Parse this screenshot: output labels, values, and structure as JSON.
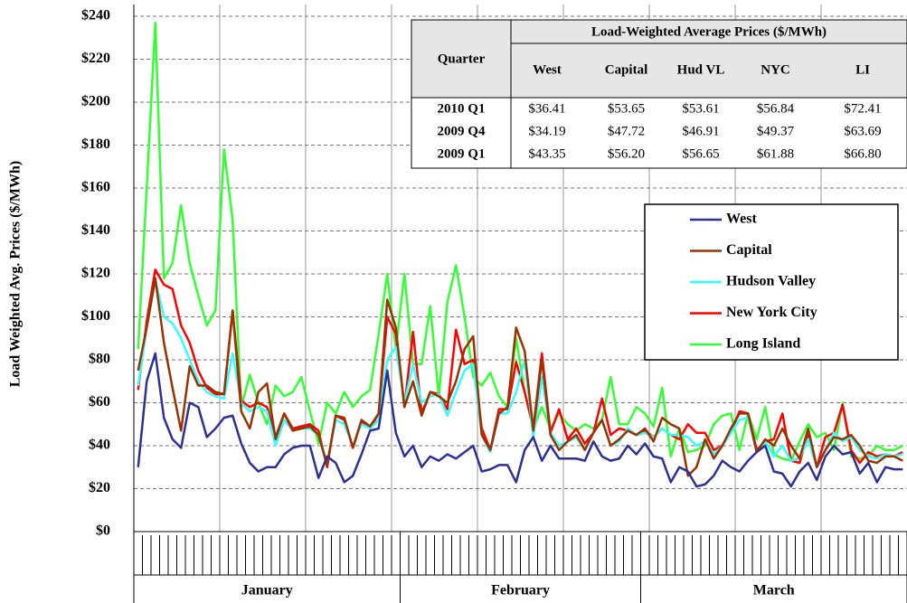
{
  "chart_data": {
    "type": "line",
    "y_label": "Load Weighted Avg. Prices  ($/MWh)",
    "categories": [
      null,
      null,
      null,
      null,
      null,
      null,
      null,
      null,
      null,
      null,
      null,
      null,
      null,
      null,
      null,
      null,
      null,
      null,
      null,
      null,
      null,
      null,
      null,
      null,
      null,
      null,
      null,
      null,
      null,
      null,
      null,
      null,
      null,
      null,
      null,
      null,
      null,
      null,
      null,
      null,
      null,
      null,
      null,
      null,
      null,
      null,
      null,
      null,
      null,
      null,
      null,
      null,
      null,
      null,
      null,
      null,
      null,
      null,
      null,
      null,
      null,
      null,
      null,
      null,
      null,
      null,
      null,
      null,
      null,
      null,
      null,
      null,
      null,
      null,
      null,
      null,
      null,
      null,
      null,
      null,
      null,
      null,
      null,
      null,
      null,
      null,
      null,
      null,
      null,
      null
    ],
    "x_groups": [
      {
        "label": "January",
        "span": 31
      },
      {
        "label": "February",
        "span": 28
      },
      {
        "label": "March",
        "span": 31
      }
    ],
    "ylim": [
      0,
      240
    ],
    "yticks": [
      {
        "value": 0,
        "label": "$0"
      },
      {
        "value": 20,
        "label": "$20"
      },
      {
        "value": 40,
        "label": "$40"
      },
      {
        "value": 60,
        "label": "$60"
      },
      {
        "value": 80,
        "label": "$80"
      },
      {
        "value": 100,
        "label": "$100"
      },
      {
        "value": 120,
        "label": "$120"
      },
      {
        "value": 140,
        "label": "$140"
      },
      {
        "value": 160,
        "label": "$160"
      },
      {
        "value": 180,
        "label": "$180"
      },
      {
        "value": 200,
        "label": "$200"
      },
      {
        "value": 220,
        "label": "$220"
      },
      {
        "value": 240,
        "label": "$240"
      }
    ],
    "grid": true,
    "legend": "right",
    "series": [
      {
        "name": "West",
        "color": "#2e3192",
        "values": [
          30,
          70,
          83,
          53,
          43,
          39,
          60,
          58,
          44,
          48,
          53,
          54,
          41,
          32,
          28,
          30,
          30,
          36,
          39,
          40,
          40,
          25,
          35,
          32,
          23,
          26,
          36,
          47,
          48,
          75,
          46,
          35,
          40,
          30,
          35,
          33,
          36,
          34,
          37,
          40,
          28,
          29,
          31,
          31,
          23,
          38,
          44,
          33,
          40,
          34,
          34,
          34,
          33,
          42,
          35,
          33,
          34,
          40,
          36,
          41,
          35,
          34,
          23,
          30,
          28,
          21,
          22,
          26,
          33,
          30,
          28,
          33,
          37,
          40,
          28,
          27,
          21,
          28,
          32,
          24,
          35,
          40,
          36,
          37,
          27,
          32,
          23,
          30,
          29,
          29
        ]
      },
      {
        "name": "Capital",
        "color": "#993300",
        "values": [
          75,
          95,
          118,
          88,
          67,
          47,
          77,
          68,
          68,
          65,
          64,
          103,
          56,
          48,
          65,
          69,
          43,
          55,
          47,
          48,
          49,
          45,
          31,
          54,
          53,
          39,
          52,
          49,
          55,
          108,
          95,
          58,
          70,
          54,
          65,
          63,
          60,
          70,
          85,
          91,
          45,
          38,
          55,
          58,
          95,
          84,
          47,
          80,
          45,
          38,
          42,
          45,
          38,
          46,
          52,
          40,
          43,
          47,
          45,
          48,
          42,
          53,
          50,
          48,
          26,
          30,
          43,
          34,
          40,
          48,
          55,
          55,
          37,
          43,
          40,
          48,
          40,
          34,
          48,
          30,
          38,
          44,
          43,
          45,
          40,
          33,
          32,
          35,
          35,
          33
        ]
      },
      {
        "name": "Hudson Valley",
        "color": "#33ffff",
        "values": [
          68,
          95,
          117,
          100,
          97,
          90,
          80,
          70,
          65,
          63,
          62,
          83,
          60,
          56,
          58,
          56,
          40,
          52,
          47,
          48,
          48,
          45,
          32,
          52,
          50,
          40,
          50,
          48,
          52,
          80,
          86,
          60,
          78,
          60,
          63,
          64,
          54,
          65,
          75,
          78,
          45,
          37,
          55,
          55,
          65,
          80,
          44,
          72,
          46,
          40,
          42,
          44,
          38,
          46,
          52,
          40,
          42,
          48,
          45,
          46,
          44,
          48,
          45,
          45,
          44,
          40,
          42,
          36,
          40,
          46,
          52,
          53,
          37,
          42,
          35,
          40,
          33,
          34,
          43,
          30,
          38,
          46,
          42,
          44,
          38,
          35,
          34,
          36,
          35,
          36
        ]
      },
      {
        "name": "New York City",
        "color": "#ff0000",
        "values": [
          66,
          98,
          122,
          115,
          113,
          96,
          88,
          75,
          67,
          64,
          64,
          103,
          61,
          58,
          60,
          58,
          44,
          55,
          48,
          49,
          50,
          47,
          30,
          54,
          52,
          39,
          51,
          48,
          55,
          100,
          92,
          58,
          93,
          55,
          65,
          64,
          57,
          94,
          78,
          80,
          48,
          38,
          57,
          57,
          79,
          65,
          48,
          83,
          46,
          57,
          43,
          48,
          41,
          46,
          62,
          45,
          48,
          47,
          45,
          47,
          44,
          48,
          45,
          43,
          50,
          46,
          46,
          38,
          40,
          46,
          56,
          55,
          38,
          42,
          43,
          55,
          33,
          32,
          46,
          30,
          44,
          46,
          59,
          38,
          32,
          37,
          35,
          36,
          35,
          37
        ]
      },
      {
        "name": "Long Island",
        "color": "#33ff33",
        "values": [
          85,
          160,
          237,
          118,
          125,
          152,
          125,
          110,
          96,
          103,
          178,
          145,
          58,
          73,
          60,
          50,
          68,
          63,
          65,
          72,
          56,
          41,
          60,
          55,
          65,
          58,
          63,
          66,
          92,
          120,
          85,
          120,
          78,
          78,
          105,
          63,
          107,
          124,
          100,
          72,
          68,
          74,
          63,
          58,
          90,
          65,
          48,
          58,
          48,
          55,
          50,
          47,
          50,
          48,
          52,
          72,
          50,
          50,
          58,
          55,
          49,
          67,
          35,
          48,
          37,
          38,
          40,
          50,
          54,
          55,
          38,
          55,
          43,
          58,
          36,
          34,
          33,
          42,
          50,
          44,
          46,
          38,
          60,
          35,
          34,
          35,
          40,
          38,
          38,
          40
        ]
      }
    ],
    "table": {
      "title": "Load-Weighted Average Prices ($/MWh)",
      "header": [
        "Quarter",
        "West",
        "Capital",
        "Hud VL",
        "NYC",
        "LI"
      ],
      "rows": [
        [
          "2010 Q1",
          "$36.41",
          "$53.65",
          "$53.61",
          "$56.84",
          "$72.41"
        ],
        [
          "2009 Q4",
          "$34.19",
          "$47.72",
          "$46.91",
          "$49.37",
          "$63.69"
        ],
        [
          "2009 Q1",
          "$43.35",
          "$56.20",
          "$56.65",
          "$61.88",
          "$66.80"
        ]
      ]
    }
  }
}
